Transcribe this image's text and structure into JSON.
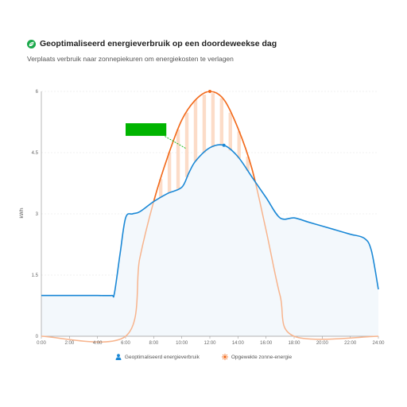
{
  "header": {
    "title": "Geoptimaliseerd energieverbruik op een doordeweekse dag",
    "subtitle": "Verplaats verbruik naar zonnepiekuren om energiekosten te verlagen"
  },
  "colors": {
    "consumption": "#1a88d6",
    "consumption_fill": "#f3f8fc",
    "solar": "#f26a1b",
    "solar_light": "#f7b48d",
    "overlap_stripe": "#fcdcc8",
    "annotation": "#00b400",
    "logo": "#1aa84a"
  },
  "legend": {
    "consumption_label": "Geoptimaliseerd energieverbruik",
    "solar_label": "Opgewekte zonne-energie",
    "consumption_icon": "person-icon",
    "solar_icon": "sun-icon"
  },
  "chart_data": {
    "type": "area",
    "title": "Geoptimaliseerd energieverbruik op een doordeweekse dag",
    "subtitle": "Verplaats verbruik naar zonnepiekuren om energiekosten te verlagen",
    "xlabel": "",
    "ylabel": "kWh",
    "xlim": [
      0,
      24
    ],
    "ylim": [
      0,
      6
    ],
    "x_ticks": [
      "0:00",
      "2:00",
      "4:00",
      "6:00",
      "8:00",
      "10:00",
      "12:00",
      "14:00",
      "16:00",
      "18:00",
      "20:00",
      "22:00",
      "24:00"
    ],
    "y_ticks": [
      "0",
      "1.5",
      "3",
      "4.5",
      "6"
    ],
    "grid": true,
    "series": [
      {
        "name": "Geoptimaliseerd energieverbruik",
        "type": "area",
        "x": [
          0,
          1,
          2,
          3,
          4,
          5,
          5.2,
          5.6,
          6,
          6.5,
          7,
          8,
          9,
          10,
          10.5,
          11,
          12,
          13,
          14,
          15,
          16,
          17,
          18,
          19,
          20,
          21,
          22,
          23,
          23.5,
          24
        ],
        "y": [
          1.0,
          1.0,
          1.0,
          1.0,
          1.0,
          1.0,
          1.05,
          2.0,
          2.9,
          3.0,
          3.05,
          3.3,
          3.5,
          3.65,
          4.0,
          4.3,
          4.62,
          4.68,
          4.4,
          3.9,
          3.4,
          2.9,
          2.9,
          2.8,
          2.7,
          2.6,
          2.5,
          2.4,
          2.1,
          1.15
        ]
      },
      {
        "name": "Opgewekte zonne-energie",
        "type": "line",
        "x": [
          0,
          6,
          7,
          8,
          9,
          10,
          11,
          12,
          13,
          14,
          15,
          16,
          17,
          18,
          24
        ],
        "y": [
          0,
          0,
          1.9,
          3.3,
          4.4,
          5.3,
          5.8,
          6.0,
          5.8,
          5.1,
          4.1,
          2.6,
          1.0,
          0,
          0
        ]
      }
    ],
    "markers": [
      {
        "series": "Opgewekte zonne-energie",
        "x": 12,
        "y": 6.0
      },
      {
        "series": "Geoptimaliseerd energieverbruik",
        "x": 13,
        "y": 4.68
      }
    ]
  }
}
